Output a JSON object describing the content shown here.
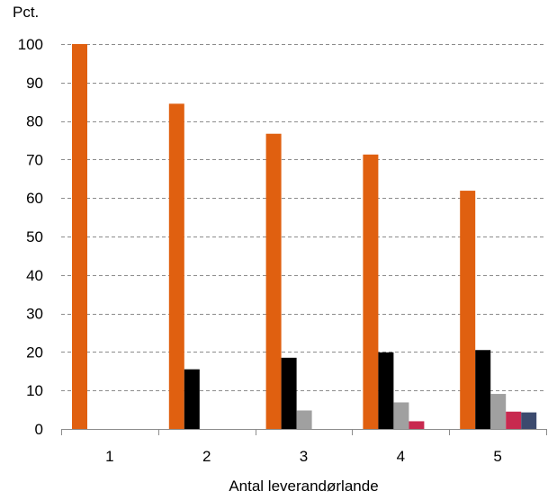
{
  "chart_data": {
    "type": "bar",
    "ylabel": "Pct.",
    "xlabel": "Antal leverandørlande",
    "categories": [
      "1",
      "2",
      "3",
      "4",
      "5"
    ],
    "ylim": [
      0,
      100
    ],
    "yticks": [
      0,
      10,
      20,
      30,
      40,
      50,
      60,
      70,
      80,
      90,
      100
    ],
    "grid": true,
    "series": [
      {
        "color": "#e06010",
        "values": [
          100,
          84.5,
          76.7,
          71.3,
          61.9
        ]
      },
      {
        "color": "#000000",
        "values": [
          null,
          15.5,
          18.5,
          19.9,
          20.5
        ]
      },
      {
        "color": "#a0a0a0",
        "values": [
          null,
          null,
          4.8,
          6.9,
          9.1
        ]
      },
      {
        "color": "#c8294f",
        "values": [
          null,
          null,
          null,
          2.0,
          4.5
        ]
      },
      {
        "color": "#3c4a6e",
        "values": [
          null,
          null,
          null,
          null,
          4.3
        ]
      }
    ]
  }
}
